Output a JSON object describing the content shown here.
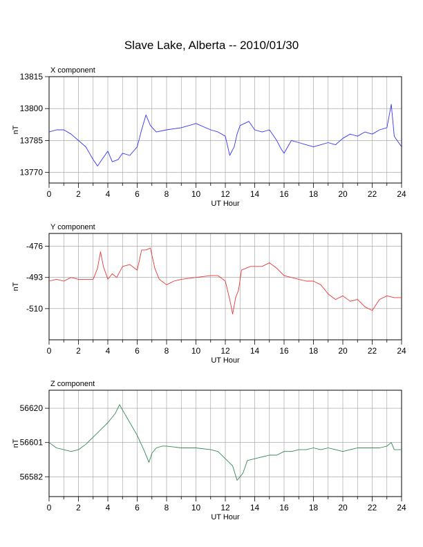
{
  "title": "Slave Lake, Alberta -- 2010/01/30",
  "chart_data": [
    {
      "type": "line",
      "panel_title": "X component",
      "xlabel": "UT Hour",
      "ylabel": "nT",
      "color": "#3333ff",
      "xlim": [
        0,
        24
      ],
      "ylim": [
        13765,
        13815
      ],
      "xticks": [
        0,
        2,
        4,
        6,
        8,
        10,
        12,
        14,
        16,
        18,
        20,
        22,
        24
      ],
      "yticks": [
        13770,
        13785,
        13800,
        13815
      ],
      "x": [
        0,
        0.5,
        1,
        1.5,
        2,
        2.5,
        3,
        3.3,
        3.7,
        4,
        4.3,
        4.7,
        5,
        5.5,
        6,
        6.3,
        6.6,
        6.9,
        7.3,
        8,
        9,
        10,
        11,
        11.5,
        12,
        12.3,
        12.6,
        12.8,
        13,
        13.3,
        13.6,
        14,
        14.5,
        15,
        15.5,
        15.8,
        16,
        16.5,
        17,
        17.5,
        18,
        18.5,
        19,
        19.5,
        20,
        20.5,
        21,
        21.5,
        22,
        22.5,
        23,
        23.3,
        23.5,
        24
      ],
      "y": [
        13789,
        13790,
        13790,
        13788,
        13785,
        13782,
        13776,
        13773,
        13777,
        13780,
        13775,
        13776,
        13779,
        13778,
        13782,
        13790,
        13797,
        13792,
        13789,
        13790,
        13791,
        13793,
        13790,
        13789,
        13787,
        13778,
        13782,
        13788,
        13792,
        13793,
        13794,
        13790,
        13789,
        13790,
        13785,
        13781,
        13779,
        13785,
        13784,
        13783,
        13782,
        13783,
        13784,
        13783,
        13786,
        13788,
        13787,
        13789,
        13788,
        13790,
        13791,
        13802,
        13787,
        13782
      ]
    },
    {
      "type": "line",
      "panel_title": "Y component",
      "xlabel": "UT Hour",
      "ylabel": "nT",
      "color": "#ee3333",
      "xlim": [
        0,
        24
      ],
      "ylim": [
        -527,
        -469
      ],
      "xticks": [
        0,
        2,
        4,
        6,
        8,
        10,
        12,
        14,
        16,
        18,
        20,
        22,
        24
      ],
      "yticks": [
        -476,
        -493,
        -510
      ],
      "x": [
        0,
        0.5,
        1,
        1.5,
        2,
        2.5,
        3,
        3.3,
        3.5,
        3.7,
        4,
        4.3,
        4.6,
        5,
        5.5,
        6,
        6.3,
        6.6,
        6.9,
        7.2,
        7.5,
        8,
        8.5,
        9,
        10,
        11,
        11.5,
        12,
        12.3,
        12.5,
        12.7,
        12.9,
        13.1,
        13.4,
        13.7,
        14,
        14.5,
        15,
        15.5,
        16,
        16.5,
        17,
        17.5,
        18,
        18.5,
        19,
        19.5,
        20,
        20.5,
        21,
        21.5,
        22,
        22.5,
        23,
        23.5,
        24
      ],
      "y": [
        -495,
        -494,
        -495,
        -493,
        -494,
        -494,
        -494,
        -488,
        -479,
        -487,
        -494,
        -491,
        -493,
        -487,
        -486,
        -489,
        -478,
        -478,
        -477,
        -488,
        -494,
        -497,
        -495,
        -494,
        -493,
        -492,
        -492,
        -495,
        -505,
        -513,
        -504,
        -500,
        -489,
        -488,
        -487,
        -487,
        -487,
        -485,
        -488,
        -492,
        -493,
        -494,
        -495,
        -495,
        -497,
        -502,
        -505,
        -503,
        -506,
        -505,
        -509,
        -511,
        -505,
        -503,
        -504,
        -504
      ]
    },
    {
      "type": "line",
      "panel_title": "Z component",
      "xlabel": "UT Hour",
      "ylabel": "nT",
      "color": "#338855",
      "xlim": [
        0,
        24
      ],
      "ylim": [
        56571,
        56630
      ],
      "xticks": [
        0,
        2,
        4,
        6,
        8,
        10,
        12,
        14,
        16,
        18,
        20,
        22,
        24
      ],
      "yticks": [
        56582,
        56601,
        56620
      ],
      "x": [
        0,
        0.5,
        1,
        1.5,
        2,
        2.5,
        3,
        3.5,
        4,
        4.5,
        4.8,
        5,
        5.5,
        6,
        6.5,
        6.8,
        7,
        7.3,
        7.7,
        8,
        9,
        10,
        11,
        11.5,
        12,
        12.5,
        12.8,
        13,
        13.2,
        13.5,
        14,
        14.5,
        15,
        15.5,
        16,
        16.5,
        17,
        17.5,
        18,
        18.5,
        19,
        19.5,
        20,
        20.5,
        21,
        21.5,
        22,
        22.5,
        23,
        23.3,
        23.5,
        24
      ],
      "y": [
        56601,
        56598,
        56597,
        56596,
        56597,
        56600,
        56604,
        56608,
        56612,
        56617,
        56622,
        56619,
        56612,
        56605,
        56596,
        56590,
        56595,
        56598,
        56599,
        56599,
        56598,
        56598,
        56597,
        56596,
        56592,
        56588,
        56580,
        56582,
        56584,
        56591,
        56592,
        56593,
        56594,
        56594,
        56596,
        56596,
        56597,
        56597,
        56598,
        56597,
        56598,
        56597,
        56596,
        56597,
        56598,
        56598,
        56598,
        56598,
        56599,
        56601,
        56597,
        56597
      ]
    }
  ]
}
